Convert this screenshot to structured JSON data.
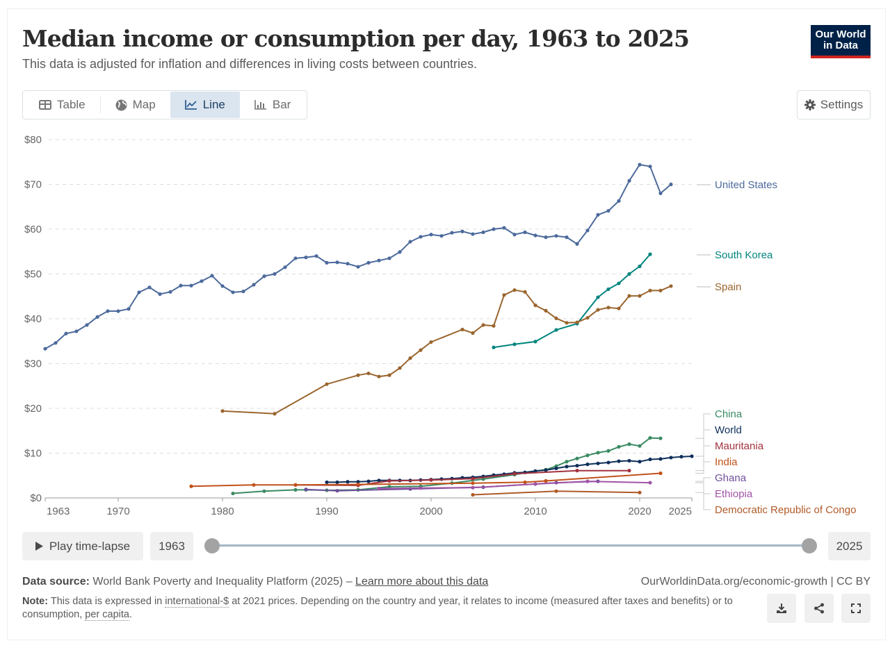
{
  "header": {
    "title": "Median income or consumption per day, 1963 to 2025",
    "subtitle": "This data is adjusted for inflation and differences in living costs between countries.",
    "logo_line1": "Our World",
    "logo_line2": "in Data"
  },
  "tabs": [
    {
      "label": "Table",
      "icon": "table-icon",
      "active": false
    },
    {
      "label": "Map",
      "icon": "globe-icon",
      "active": false
    },
    {
      "label": "Line",
      "icon": "line-chart-icon",
      "active": true
    },
    {
      "label": "Bar",
      "icon": "bar-chart-icon",
      "active": false
    }
  ],
  "settings_label": "Settings",
  "timeline": {
    "play_label": "Play time-lapse",
    "start_year": "1963",
    "end_year": "2025",
    "start_fraction": 0,
    "end_fraction": 1
  },
  "footer": {
    "source_label": "Data source:",
    "source_text": "World Bank Poverty and Inequality Platform (2025) – ",
    "source_link": "Learn more about this data",
    "credit": "OurWorldinData.org/economic-growth | CC BY",
    "note_label": "Note:",
    "note_pre": "This data is expressed in ",
    "note_link1": "international-$",
    "note_mid": " at 2021 prices. Depending on the country and year, it relates to income (measured after taxes and benefits) or to consumption, ",
    "note_link2": "per capita",
    "note_end": "."
  },
  "chart_data": {
    "type": "line",
    "title": "Median income or consumption per day, 1963 to 2025",
    "xlabel": "",
    "ylabel": "",
    "xlim": [
      1963,
      2025
    ],
    "ylim": [
      0,
      80
    ],
    "x_ticks": [
      1963,
      1970,
      1980,
      1990,
      2000,
      2010,
      2020,
      2025
    ],
    "y_ticks": [
      0,
      10,
      20,
      30,
      40,
      50,
      60,
      70,
      80
    ],
    "y_tick_labels": [
      "$0",
      "$10",
      "$20",
      "$30",
      "$40",
      "$50",
      "$60",
      "$70",
      "$80"
    ],
    "grid": "horizontal-dashed",
    "legend": "right-inline",
    "series": [
      {
        "name": "United States",
        "color": "#4c6a9c",
        "points": [
          [
            1963,
            33.3
          ],
          [
            1964,
            34.6
          ],
          [
            1965,
            36.7
          ],
          [
            1966,
            37.2
          ],
          [
            1967,
            38.6
          ],
          [
            1968,
            40.4
          ],
          [
            1969,
            41.7
          ],
          [
            1970,
            41.7
          ],
          [
            1971,
            42.2
          ],
          [
            1972,
            45.9
          ],
          [
            1973,
            47.0
          ],
          [
            1974,
            45.5
          ],
          [
            1975,
            46.0
          ],
          [
            1976,
            47.4
          ],
          [
            1977,
            47.4
          ],
          [
            1978,
            48.4
          ],
          [
            1979,
            49.6
          ],
          [
            1980,
            47.3
          ],
          [
            1981,
            45.9
          ],
          [
            1982,
            46.1
          ],
          [
            1983,
            47.6
          ],
          [
            1984,
            49.5
          ],
          [
            1985,
            50.0
          ],
          [
            1986,
            51.5
          ],
          [
            1987,
            53.5
          ],
          [
            1988,
            53.7
          ],
          [
            1989,
            54.0
          ],
          [
            1990,
            52.5
          ],
          [
            1991,
            52.6
          ],
          [
            1992,
            52.3
          ],
          [
            1993,
            51.6
          ],
          [
            1994,
            52.5
          ],
          [
            1995,
            53.0
          ],
          [
            1996,
            53.5
          ],
          [
            1997,
            54.9
          ],
          [
            1998,
            57.2
          ],
          [
            1999,
            58.3
          ],
          [
            2000,
            58.8
          ],
          [
            2001,
            58.5
          ],
          [
            2002,
            59.2
          ],
          [
            2003,
            59.5
          ],
          [
            2004,
            58.9
          ],
          [
            2005,
            59.3
          ],
          [
            2006,
            60.0
          ],
          [
            2007,
            60.3
          ],
          [
            2008,
            58.8
          ],
          [
            2009,
            59.3
          ],
          [
            2010,
            58.6
          ],
          [
            2011,
            58.2
          ],
          [
            2012,
            58.5
          ],
          [
            2013,
            58.2
          ],
          [
            2014,
            56.7
          ],
          [
            2015,
            59.7
          ],
          [
            2016,
            63.2
          ],
          [
            2017,
            64.1
          ],
          [
            2018,
            66.3
          ],
          [
            2019,
            70.8
          ],
          [
            2020,
            74.4
          ],
          [
            2021,
            74.0
          ],
          [
            2022,
            68.0
          ],
          [
            2023,
            70.0
          ]
        ]
      },
      {
        "name": "South Korea",
        "color": "#00847e",
        "points": [
          [
            2006,
            33.6
          ],
          [
            2008,
            34.3
          ],
          [
            2010,
            34.9
          ],
          [
            2012,
            37.5
          ],
          [
            2014,
            38.9
          ],
          [
            2016,
            44.8
          ],
          [
            2017,
            46.6
          ],
          [
            2018,
            47.9
          ],
          [
            2019,
            50.0
          ],
          [
            2020,
            51.7
          ],
          [
            2021,
            54.4
          ]
        ]
      },
      {
        "name": "Spain",
        "color": "#9a652e",
        "points": [
          [
            1980,
            19.4
          ],
          [
            1985,
            18.8
          ],
          [
            1990,
            25.4
          ],
          [
            1993,
            27.4
          ],
          [
            1994,
            27.8
          ],
          [
            1995,
            27.1
          ],
          [
            1996,
            27.4
          ],
          [
            1997,
            29.0
          ],
          [
            1998,
            31.2
          ],
          [
            1999,
            33.0
          ],
          [
            2000,
            34.8
          ],
          [
            2003,
            37.6
          ],
          [
            2004,
            36.8
          ],
          [
            2005,
            38.6
          ],
          [
            2006,
            38.4
          ],
          [
            2007,
            45.3
          ],
          [
            2008,
            46.4
          ],
          [
            2009,
            46.0
          ],
          [
            2010,
            43.0
          ],
          [
            2011,
            41.8
          ],
          [
            2012,
            40.1
          ],
          [
            2013,
            39.1
          ],
          [
            2014,
            39.2
          ],
          [
            2015,
            40.2
          ],
          [
            2016,
            42.0
          ],
          [
            2017,
            42.5
          ],
          [
            2018,
            42.3
          ],
          [
            2019,
            45.1
          ],
          [
            2020,
            45.1
          ],
          [
            2021,
            46.3
          ],
          [
            2022,
            46.3
          ],
          [
            2023,
            47.3
          ]
        ]
      },
      {
        "name": "China",
        "color": "#38aaba",
        "display_color": "#3a8a62",
        "points": [
          [
            1981,
            1.0
          ],
          [
            1984,
            1.5
          ],
          [
            1987,
            1.8
          ],
          [
            1988,
            1.8
          ],
          [
            1990,
            1.7
          ],
          [
            1993,
            1.8
          ],
          [
            1996,
            2.5
          ],
          [
            1999,
            2.6
          ],
          [
            2002,
            3.3
          ],
          [
            2005,
            4.2
          ],
          [
            2008,
            5.2
          ],
          [
            2010,
            6.0
          ],
          [
            2011,
            6.3
          ],
          [
            2012,
            7.1
          ],
          [
            2013,
            8.1
          ],
          [
            2014,
            8.8
          ],
          [
            2015,
            9.5
          ],
          [
            2016,
            10.1
          ],
          [
            2017,
            10.5
          ],
          [
            2018,
            11.4
          ],
          [
            2019,
            12.0
          ],
          [
            2020,
            11.6
          ],
          [
            2021,
            13.4
          ],
          [
            2022,
            13.3
          ]
        ]
      },
      {
        "name": "World",
        "color": "#0f2e5a",
        "points": [
          [
            1990,
            3.5
          ],
          [
            1991,
            3.5
          ],
          [
            1992,
            3.6
          ],
          [
            1993,
            3.6
          ],
          [
            1994,
            3.7
          ],
          [
            1995,
            3.9
          ],
          [
            1996,
            3.9
          ],
          [
            1997,
            3.9
          ],
          [
            1998,
            3.9
          ],
          [
            1999,
            4.0
          ],
          [
            2000,
            4.1
          ],
          [
            2001,
            4.2
          ],
          [
            2002,
            4.3
          ],
          [
            2003,
            4.5
          ],
          [
            2004,
            4.6
          ],
          [
            2005,
            4.8
          ],
          [
            2006,
            5.1
          ],
          [
            2007,
            5.3
          ],
          [
            2008,
            5.6
          ],
          [
            2009,
            5.7
          ],
          [
            2010,
            6.0
          ],
          [
            2011,
            6.2
          ],
          [
            2012,
            6.6
          ],
          [
            2013,
            7.0
          ],
          [
            2014,
            7.2
          ],
          [
            2015,
            7.5
          ],
          [
            2016,
            7.7
          ],
          [
            2017,
            7.9
          ],
          [
            2018,
            8.2
          ],
          [
            2019,
            8.3
          ],
          [
            2020,
            8.1
          ],
          [
            2021,
            8.6
          ],
          [
            2022,
            8.7
          ],
          [
            2023,
            9.0
          ],
          [
            2024,
            9.2
          ],
          [
            2025,
            9.3
          ]
        ]
      },
      {
        "name": "Mauritania",
        "color": "#a2323f",
        "points": [
          [
            1987,
            2.9
          ],
          [
            1993,
            2.8
          ],
          [
            1996,
            3.8
          ],
          [
            2000,
            4.0
          ],
          [
            2004,
            4.3
          ],
          [
            2008,
            5.4
          ],
          [
            2014,
            6.1
          ],
          [
            2019,
            6.1
          ]
        ]
      },
      {
        "name": "India",
        "color": "#c15119",
        "points": [
          [
            1977,
            2.6
          ],
          [
            1983,
            2.9
          ],
          [
            1987,
            2.9
          ],
          [
            1993,
            3.0
          ],
          [
            2004,
            3.3
          ],
          [
            2009,
            3.5
          ],
          [
            2011,
            3.8
          ],
          [
            2022,
            5.5
          ]
        ]
      },
      {
        "name": "Ghana",
        "color": "#6e4e9a",
        "points": [
          [
            1988,
            1.9
          ],
          [
            1991,
            1.6
          ],
          [
            1998,
            2.0
          ],
          [
            2005,
            2.4
          ],
          [
            2012,
            3.4
          ],
          [
            2016,
            3.7
          ]
        ]
      },
      {
        "name": "Ethiopia",
        "color": "#a054a6",
        "points": [
          [
            1995,
            2.1
          ],
          [
            1999,
            2.2
          ],
          [
            2004,
            2.3
          ],
          [
            2010,
            3.1
          ],
          [
            2015,
            3.7
          ],
          [
            2021,
            3.4
          ]
        ]
      },
      {
        "name": "Democratic Republic of Congo",
        "color": "#b05a29",
        "points": [
          [
            2004,
            0.7
          ],
          [
            2012,
            1.5
          ],
          [
            2020,
            1.2
          ]
        ]
      }
    ]
  }
}
